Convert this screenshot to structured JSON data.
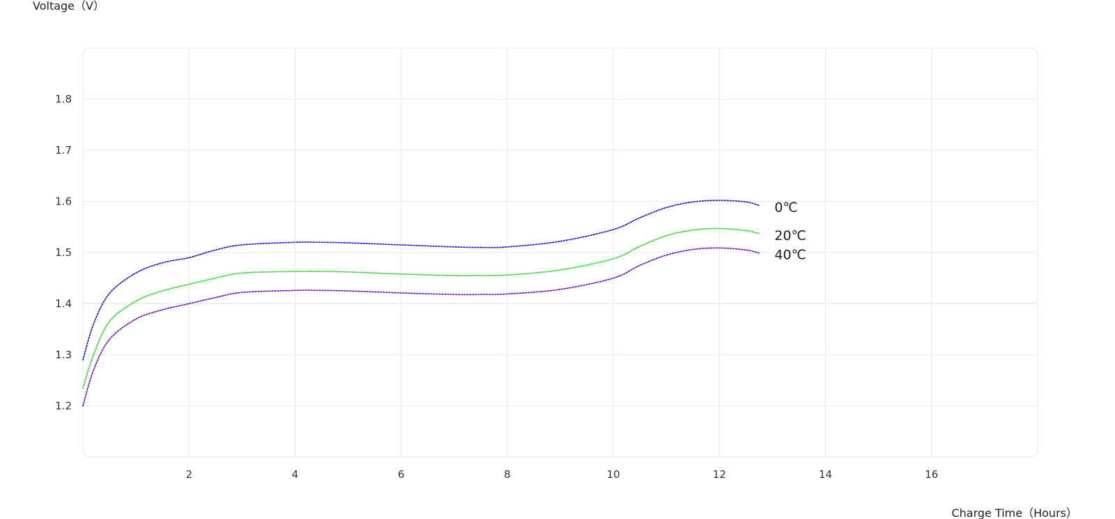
{
  "chart_data": {
    "type": "line",
    "ylabel": "Voltage（V）",
    "xlabel": "Charge Time（Hours）",
    "xlim": [
      0,
      18
    ],
    "ylim": [
      1.1,
      1.9
    ],
    "xticks": [
      2,
      4,
      6,
      8,
      10,
      12,
      14,
      16
    ],
    "yticks": [
      1.2,
      1.3,
      1.4,
      1.5,
      1.6,
      1.7,
      1.8
    ],
    "x_tick_labels": [
      "2",
      "4",
      "6",
      "8",
      "10",
      "12",
      "14",
      "16"
    ],
    "y_tick_labels": [
      "1.2",
      "1.3",
      "1.4",
      "1.5",
      "1.6",
      "1.7",
      "1.8"
    ],
    "grid": true,
    "legend": "inline at line ends",
    "series": [
      {
        "name": "0℃",
        "color": "#1414e6",
        "x": [
          0,
          0.2,
          0.5,
          1,
          1.5,
          2,
          2.5,
          3,
          4,
          4.5,
          5,
          6,
          7,
          7.5,
          8,
          9,
          10,
          10.5,
          11,
          11.5,
          12,
          12.5,
          12.75
        ],
        "y": [
          1.29,
          1.36,
          1.42,
          1.46,
          1.48,
          1.49,
          1.505,
          1.515,
          1.52,
          1.52,
          1.519,
          1.515,
          1.511,
          1.51,
          1.511,
          1.522,
          1.545,
          1.568,
          1.588,
          1.599,
          1.602,
          1.599,
          1.592
        ]
      },
      {
        "name": "20℃",
        "color": "#26dc26",
        "x": [
          0,
          0.2,
          0.5,
          1,
          1.5,
          2,
          2.5,
          3,
          4,
          4.5,
          5,
          6,
          7,
          7.5,
          8,
          9,
          10,
          10.5,
          11,
          11.5,
          12,
          12.5,
          12.75
        ],
        "y": [
          1.235,
          1.3,
          1.365,
          1.405,
          1.425,
          1.438,
          1.45,
          1.46,
          1.463,
          1.463,
          1.462,
          1.458,
          1.455,
          1.455,
          1.456,
          1.466,
          1.488,
          1.512,
          1.533,
          1.544,
          1.547,
          1.543,
          1.537
        ]
      },
      {
        "name": "40℃",
        "color": "#6a0cc4",
        "x": [
          0,
          0.2,
          0.5,
          1,
          1.5,
          2,
          2.5,
          3,
          4,
          4.5,
          5,
          6,
          7,
          7.5,
          8,
          9,
          10,
          10.5,
          11,
          11.5,
          12,
          12.5,
          12.75
        ],
        "y": [
          1.2,
          1.27,
          1.33,
          1.37,
          1.388,
          1.4,
          1.412,
          1.422,
          1.426,
          1.426,
          1.425,
          1.421,
          1.418,
          1.418,
          1.419,
          1.428,
          1.45,
          1.475,
          1.495,
          1.506,
          1.509,
          1.505,
          1.499
        ]
      }
    ]
  }
}
